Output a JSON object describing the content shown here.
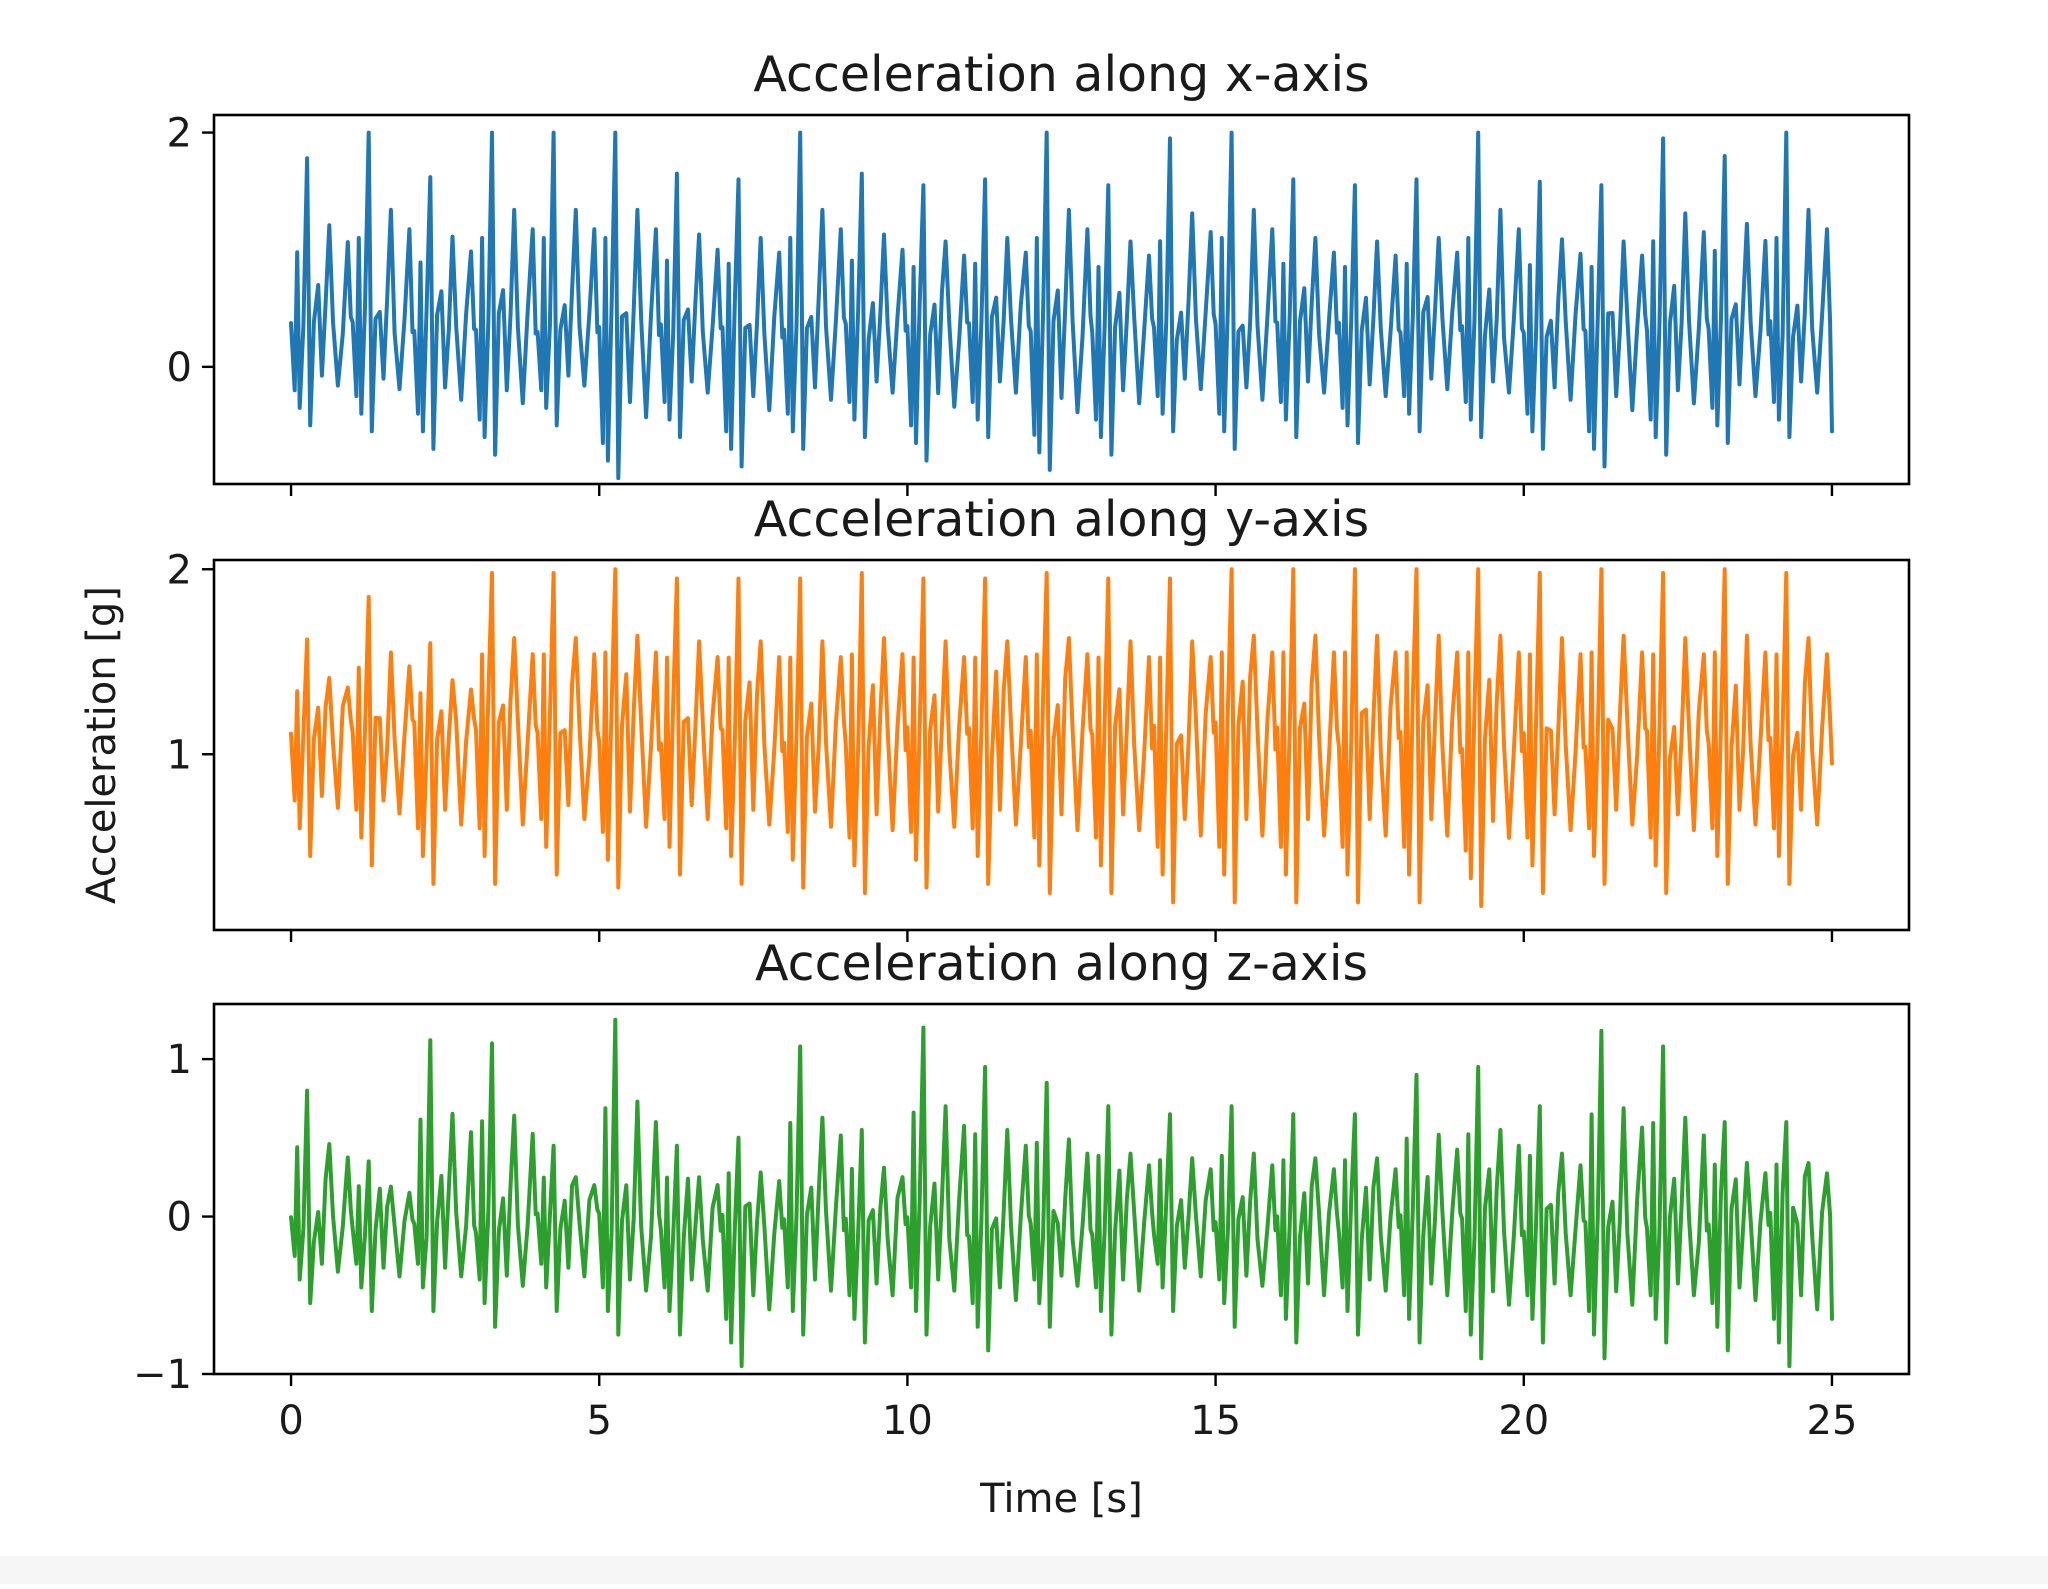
{
  "chart_data": {
    "type": "line",
    "xlabel": "Time [s]",
    "ylabel": "Acceleration [g]",
    "x_range": [
      0,
      25
    ],
    "xlim": [
      -1.25,
      26.25
    ],
    "x_ticks": [
      0,
      5,
      10,
      15,
      20,
      25
    ],
    "x_tick_labels": [
      "0",
      "5",
      "10",
      "15",
      "20",
      "25"
    ],
    "grid": false,
    "subplots": [
      {
        "title": "Acceleration along x-axis",
        "color": "#1f77b4",
        "ylim": [
          -1.0,
          2.15
        ],
        "y_ticks": [
          0,
          2
        ],
        "y_tick_labels": [
          "0",
          "2"
        ],
        "cycle_period_s": 1.0,
        "peaks": [
          1.78,
          2.0,
          1.62,
          2.0,
          2.0,
          2.0,
          1.65,
          1.6,
          2.0,
          1.65,
          1.55,
          1.6,
          2.0,
          1.55,
          1.95,
          2.0,
          1.6,
          1.55,
          1.6,
          2.0,
          1.58,
          1.55,
          1.95,
          1.8,
          2.0
        ],
        "troughs": [
          -0.5,
          -0.55,
          -0.7,
          -0.75,
          -0.5,
          -0.95,
          -0.6,
          -0.85,
          -0.7,
          -0.6,
          -0.8,
          -0.6,
          -0.88,
          -0.75,
          -0.55,
          -0.7,
          -0.6,
          -0.65,
          -0.55,
          -0.6,
          -0.7,
          -0.85,
          -0.75,
          -0.65,
          -0.6
        ]
      },
      {
        "title": "Acceleration along y-axis",
        "color": "#ff7f0e",
        "ylim": [
          0.05,
          2.05
        ],
        "y_ticks": [
          1,
          2
        ],
        "y_tick_labels": [
          "1",
          "2"
        ],
        "cycle_period_s": 1.0,
        "peaks": [
          1.62,
          1.85,
          1.6,
          1.98,
          1.98,
          2.0,
          1.95,
          1.95,
          1.95,
          1.98,
          1.95,
          1.95,
          1.98,
          1.95,
          1.95,
          2.0,
          2.0,
          2.0,
          2.0,
          2.0,
          1.98,
          2.0,
          1.98,
          2.0,
          1.98
        ],
        "troughs": [
          0.45,
          0.4,
          0.3,
          0.3,
          0.35,
          0.28,
          0.35,
          0.3,
          0.28,
          0.25,
          0.28,
          0.3,
          0.25,
          0.25,
          0.2,
          0.2,
          0.2,
          0.2,
          0.2,
          0.18,
          0.25,
          0.3,
          0.25,
          0.3,
          0.3
        ]
      },
      {
        "title": "Acceleration along z-axis",
        "color": "#2ca02c",
        "ylim": [
          -1.0,
          1.35
        ],
        "y_ticks": [
          -1,
          0,
          1
        ],
        "y_tick_labels": [
          "−1",
          "0",
          "1"
        ],
        "cycle_period_s": 1.0,
        "peaks": [
          0.8,
          0.35,
          1.12,
          1.1,
          0.45,
          1.25,
          0.45,
          0.5,
          1.08,
          0.55,
          1.2,
          0.95,
          0.85,
          0.7,
          0.65,
          0.7,
          0.65,
          0.65,
          0.9,
          0.95,
          0.7,
          1.18,
          1.08,
          0.6,
          0.6
        ],
        "troughs": [
          -0.55,
          -0.6,
          -0.6,
          -0.7,
          -0.6,
          -0.75,
          -0.75,
          -0.95,
          -0.75,
          -0.8,
          -0.75,
          -0.85,
          -0.7,
          -0.75,
          -0.6,
          -0.7,
          -0.8,
          -0.75,
          -0.8,
          -0.9,
          -0.8,
          -0.9,
          -0.8,
          -0.85,
          -0.95
        ]
      }
    ]
  }
}
